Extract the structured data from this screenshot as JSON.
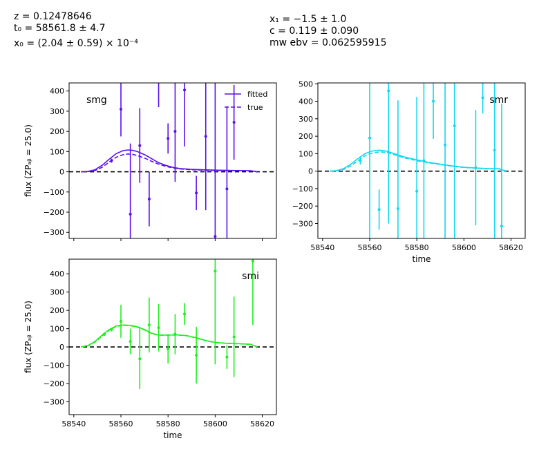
{
  "header": {
    "z": "z = 0.12478646",
    "t0": "t₀ = 58561.8 ± 4.7",
    "x0": "x₀ = (2.04 ± 0.59) × 10⁻⁴",
    "x1": "x₁ = −1.5 ± 1.0",
    "c": "c = 0.119 ± 0.090",
    "mwebv": "mw ebv = 0.062595915"
  },
  "chart_data": [
    {
      "type": "line",
      "band": "smg",
      "color": "#5a0ef0",
      "ylabel": "flux (ZPₐᵦ = 25.0)",
      "xlabel": "",
      "xlim": [
        58538,
        58626
      ],
      "ylim": [
        -330,
        440
      ],
      "xticks": [
        58540,
        58560,
        58580,
        58600,
        58620
      ],
      "show_xticklabels": false,
      "yticks": [
        -300,
        -200,
        -100,
        0,
        100,
        200,
        300,
        400
      ],
      "legend": {
        "position": "top-right",
        "entries": [
          "fitted",
          "true"
        ]
      },
      "fitted": {
        "x": [
          58543,
          58546,
          58549,
          58552,
          58555,
          58558,
          58561,
          58563,
          58565,
          58567,
          58570,
          58573,
          58576,
          58579,
          58582,
          58585,
          58590,
          58595,
          58600,
          58605,
          58610,
          58615,
          58618
        ],
        "y": [
          0,
          2,
          10,
          32,
          62,
          90,
          105,
          108,
          106,
          100,
          85,
          65,
          45,
          32,
          22,
          16,
          12,
          10,
          8,
          7,
          6,
          5,
          0
        ]
      },
      "true": {
        "x": [
          58543,
          58546,
          58549,
          58552,
          58555,
          58558,
          58561,
          58563,
          58565,
          58567,
          58570,
          58573,
          58576,
          58579,
          58582,
          58585,
          58590,
          58595,
          58600,
          58605,
          58610,
          58615,
          58618
        ],
        "y": [
          0,
          1,
          6,
          22,
          48,
          72,
          85,
          88,
          86,
          80,
          68,
          52,
          38,
          27,
          19,
          14,
          10,
          8,
          7,
          6,
          5,
          4,
          0
        ]
      },
      "points": [
        {
          "x": 58556,
          "y": 55,
          "err": 10
        },
        {
          "x": 58560,
          "y": 310,
          "err": 135
        },
        {
          "x": 58564,
          "y": -210,
          "err": 350
        },
        {
          "x": 58568,
          "y": 130,
          "err": 185
        },
        {
          "x": 58572,
          "y": -135,
          "err": 135
        },
        {
          "x": 58576,
          "y": 1000,
          "err": 680
        },
        {
          "x": 58580,
          "y": 165,
          "err": 75
        },
        {
          "x": 58583,
          "y": 200,
          "err": 250
        },
        {
          "x": 58587,
          "y": 405,
          "err": 280
        },
        {
          "x": 58592,
          "y": -105,
          "err": 85
        },
        {
          "x": 58596,
          "y": 175,
          "err": 365
        },
        {
          "x": 58600,
          "y": -320,
          "err": 880
        },
        {
          "x": 58605,
          "y": -85,
          "err": 410
        },
        {
          "x": 58608,
          "y": 245,
          "err": 185
        }
      ],
      "label": "smg"
    },
    {
      "type": "line",
      "band": "smr",
      "color": "#10d8f0",
      "ylabel": "",
      "xlabel": "time",
      "xlim": [
        58538,
        58626
      ],
      "ylim": [
        -385,
        505
      ],
      "xticks": [
        58540,
        58560,
        58580,
        58600,
        58620
      ],
      "show_xticklabels": true,
      "yticks": [
        -300,
        -200,
        -100,
        0,
        100,
        200,
        300,
        400,
        500
      ],
      "fitted": {
        "x": [
          58543,
          58546,
          58549,
          58552,
          58555,
          58558,
          58561,
          58564,
          58567,
          58570,
          58575,
          58580,
          58585,
          58590,
          58595,
          58600,
          58605,
          58610,
          58615,
          58618
        ],
        "y": [
          0,
          3,
          15,
          40,
          72,
          100,
          115,
          120,
          115,
          102,
          80,
          65,
          50,
          40,
          30,
          22,
          18,
          15,
          14,
          0
        ]
      },
      "true": {
        "x": [
          58543,
          58546,
          58549,
          58552,
          58555,
          58558,
          58561,
          58564,
          58567,
          58570,
          58575,
          58580,
          58585,
          58590,
          58595,
          58600,
          58605,
          58610,
          58615,
          58618
        ],
        "y": [
          0,
          2,
          10,
          30,
          60,
          88,
          103,
          110,
          108,
          96,
          75,
          60,
          48,
          38,
          28,
          21,
          17,
          14,
          13,
          0
        ]
      },
      "points": [
        {
          "x": 58556,
          "y": 60,
          "err": 22
        },
        {
          "x": 58560,
          "y": 190,
          "err": 900
        },
        {
          "x": 58564,
          "y": -220,
          "err": 115
        },
        {
          "x": 58568,
          "y": 460,
          "err": 760
        },
        {
          "x": 58572,
          "y": -215,
          "err": 620
        },
        {
          "x": 58580,
          "y": -115,
          "err": 540
        },
        {
          "x": 58583,
          "y": 60,
          "err": 900
        },
        {
          "x": 58587,
          "y": 400,
          "err": 215
        },
        {
          "x": 58592,
          "y": 150,
          "err": 820
        },
        {
          "x": 58596,
          "y": 260,
          "err": 1000
        },
        {
          "x": 58605,
          "y": 20,
          "err": 330
        },
        {
          "x": 58608,
          "y": 420,
          "err": 90
        },
        {
          "x": 58613,
          "y": 120,
          "err": 800
        },
        {
          "x": 58616,
          "y": -315,
          "err": 700
        }
      ],
      "label": "smr"
    },
    {
      "type": "line",
      "band": "smi",
      "color": "#1ef01e",
      "ylabel": "flux (ZPₐᵦ = 25.0)",
      "xlabel": "time",
      "xlim": [
        58538,
        58626
      ],
      "ylim": [
        -370,
        480
      ],
      "xticks": [
        58540,
        58560,
        58580,
        58600,
        58620
      ],
      "show_xticklabels": true,
      "yticks": [
        -300,
        -200,
        -100,
        0,
        100,
        200,
        300,
        400
      ],
      "fitted": {
        "x": [
          58543,
          58546,
          58549,
          58552,
          58555,
          58558,
          58561,
          58564,
          58567,
          58570,
          58573,
          58576,
          58580,
          58584,
          58588,
          58592,
          58596,
          58600,
          58605,
          58610,
          58615,
          58618
        ],
        "y": [
          0,
          8,
          30,
          65,
          95,
          115,
          120,
          118,
          110,
          95,
          75,
          65,
          65,
          66,
          62,
          50,
          35,
          25,
          20,
          18,
          15,
          0
        ]
      },
      "true": {
        "x": [
          58543,
          58546,
          58549,
          58552,
          58555,
          58558,
          58561,
          58564,
          58567,
          58570,
          58573,
          58576,
          58580,
          58584,
          58588,
          58592,
          58596,
          58600,
          58605,
          58610,
          58615,
          58618
        ],
        "y": [
          0,
          6,
          26,
          60,
          92,
          112,
          118,
          116,
          108,
          93,
          73,
          64,
          64,
          65,
          61,
          49,
          34,
          24,
          19,
          17,
          14,
          0
        ]
      },
      "points": [
        {
          "x": 58553,
          "y": 70,
          "err": 10
        },
        {
          "x": 58556,
          "y": 95,
          "err": 10
        },
        {
          "x": 58560,
          "y": 140,
          "err": 90
        },
        {
          "x": 58564,
          "y": 30,
          "err": 70
        },
        {
          "x": 58568,
          "y": -65,
          "err": 165
        },
        {
          "x": 58572,
          "y": 120,
          "err": 150
        },
        {
          "x": 58576,
          "y": 105,
          "err": 130
        },
        {
          "x": 58580,
          "y": -10,
          "err": 80
        },
        {
          "x": 58583,
          "y": 70,
          "err": 110
        },
        {
          "x": 58587,
          "y": 180,
          "err": 60
        },
        {
          "x": 58592,
          "y": -45,
          "err": 155
        },
        {
          "x": 58600,
          "y": 415,
          "err": 510
        },
        {
          "x": 58605,
          "y": -55,
          "err": 65
        },
        {
          "x": 58608,
          "y": 55,
          "err": 220
        },
        {
          "x": 58616,
          "y": 470,
          "err": 350
        }
      ],
      "label": "smi"
    }
  ]
}
